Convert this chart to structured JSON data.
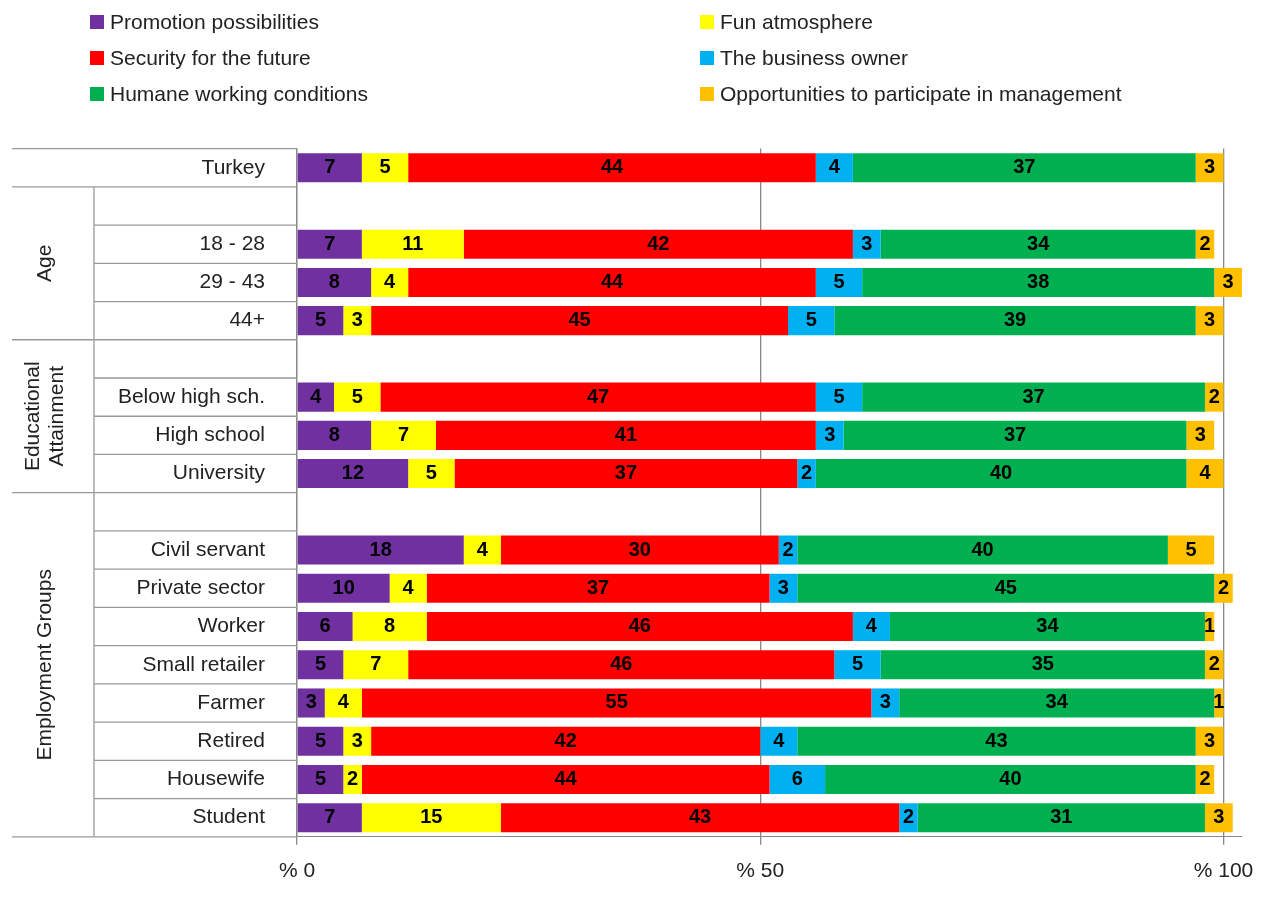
{
  "chart_data": {
    "type": "bar",
    "orientation": "horizontal",
    "stacked": true,
    "data_labels": true,
    "grid": "x",
    "legend": "top",
    "categories": [
      "Turkey",
      null,
      "18 - 28",
      "29 - 43",
      "44+",
      null,
      "Below high sch.",
      "High school",
      "University",
      null,
      "Civil servant",
      "Private sector",
      "Worker",
      "Small retailer",
      "Farmer",
      "Retired",
      "Housewife",
      "Student"
    ],
    "series": [
      {
        "name": "Promotion possibilities",
        "color": "#7030a0",
        "values": [
          7,
          null,
          7,
          8,
          5,
          null,
          4,
          8,
          12,
          null,
          18,
          10,
          6,
          5,
          3,
          5,
          5,
          7
        ]
      },
      {
        "name": "Fun atmosphere",
        "color": "#ffff00",
        "values": [
          5,
          null,
          11,
          4,
          3,
          null,
          5,
          7,
          5,
          null,
          4,
          4,
          8,
          7,
          4,
          3,
          2,
          15
        ]
      },
      {
        "name": "Security for the future",
        "color": "#ff0000",
        "values": [
          44,
          null,
          42,
          44,
          45,
          null,
          47,
          41,
          37,
          null,
          30,
          37,
          46,
          46,
          55,
          42,
          44,
          43
        ]
      },
      {
        "name": "The business owner",
        "color": "#00b0f0",
        "values": [
          4,
          null,
          3,
          5,
          5,
          null,
          5,
          3,
          2,
          null,
          2,
          3,
          4,
          5,
          3,
          4,
          6,
          2
        ]
      },
      {
        "name": "Humane working conditions",
        "color": "#00b050",
        "values": [
          37,
          null,
          34,
          38,
          39,
          null,
          37,
          37,
          40,
          null,
          40,
          45,
          34,
          35,
          34,
          43,
          40,
          31
        ]
      },
      {
        "name": "Opportunities to participate in management",
        "color": "#ffc000",
        "values": [
          3,
          null,
          2,
          3,
          3,
          null,
          2,
          3,
          4,
          null,
          5,
          2,
          1,
          2,
          1,
          3,
          2,
          3
        ]
      }
    ],
    "xlim": [
      0,
      102
    ],
    "xticks": [
      {
        "value": 0,
        "label": "% 0"
      },
      {
        "value": 50,
        "label": "% 50"
      },
      {
        "value": 100,
        "label": "% 100"
      }
    ],
    "annotations": [
      "Age",
      "Educational Attainment",
      "Employment Groups"
    ]
  }
}
